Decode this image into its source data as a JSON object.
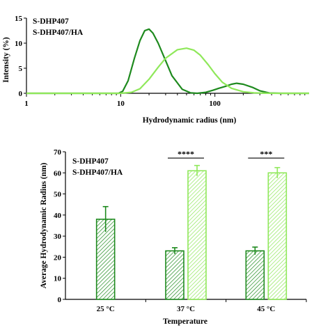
{
  "chart_data": [
    {
      "type": "line",
      "xlabel": "Hydrodynamic radius (nm)",
      "ylabel": "Intensity (%)",
      "x_scale": "log",
      "xlim": [
        1,
        1000
      ],
      "ylim": [
        0,
        15
      ],
      "x_ticks": [
        "1",
        "10",
        "100"
      ],
      "y_ticks": [
        "0",
        "5",
        "10",
        "15"
      ],
      "grid": false,
      "legend_position": "top-left",
      "series": [
        {
          "name": "S-DHP407",
          "color": "#1e8a1e",
          "x": [
            5,
            8,
            9.5,
            10.5,
            12,
            14,
            16,
            18,
            20,
            22,
            25,
            30,
            35,
            45,
            55,
            65,
            80,
            95,
            110,
            130,
            150,
            170,
            200,
            250,
            300,
            380,
            500,
            700,
            1000
          ],
          "y": [
            0,
            0,
            0,
            0.4,
            2.5,
            7.0,
            10.5,
            12.5,
            12.8,
            12.0,
            10.0,
            6.5,
            3.5,
            0.8,
            0.1,
            0,
            0.2,
            0.6,
            1.0,
            1.4,
            1.8,
            2.0,
            1.8,
            1.2,
            0.5,
            0.05,
            0,
            0,
            0
          ]
        },
        {
          "name": "S-DHP407/HA",
          "color": "#8fe85a",
          "x": [
            5,
            10,
            13,
            16,
            20,
            25,
            30,
            40,
            50,
            60,
            70,
            85,
            100,
            120,
            150,
            200,
            260,
            350,
            450,
            600,
            1000
          ],
          "y": [
            0,
            0,
            0.2,
            0.9,
            2.8,
            5.2,
            7.0,
            8.7,
            9.0,
            8.6,
            7.6,
            5.7,
            3.9,
            2.2,
            1.0,
            0.3,
            0.08,
            0.02,
            0,
            0,
            0
          ]
        }
      ]
    },
    {
      "type": "bar",
      "xlabel": "Temperature",
      "ylabel": "Average Hydrodynamic Radius (nm)",
      "categories": [
        "25 °C",
        "37 °C",
        "45 °C"
      ],
      "ylim": [
        0,
        70
      ],
      "y_ticks": [
        "0",
        "10",
        "20",
        "30",
        "40",
        "50",
        "60",
        "70"
      ],
      "grid": false,
      "legend_position": "top-left",
      "series": [
        {
          "name": "S-DHP407",
          "color": "#1e8a1e",
          "values": [
            38,
            23,
            23
          ],
          "errors": [
            6,
            1.5,
            1.8
          ]
        },
        {
          "name": "S-DHP407/HA",
          "color": "#8fe85a",
          "values": [
            null,
            61,
            60
          ],
          "errors": [
            null,
            2.5,
            2.5
          ]
        }
      ],
      "annotations": [
        {
          "category": "37 °C",
          "text": "****"
        },
        {
          "category": "45 °C",
          "text": "***"
        }
      ]
    }
  ]
}
